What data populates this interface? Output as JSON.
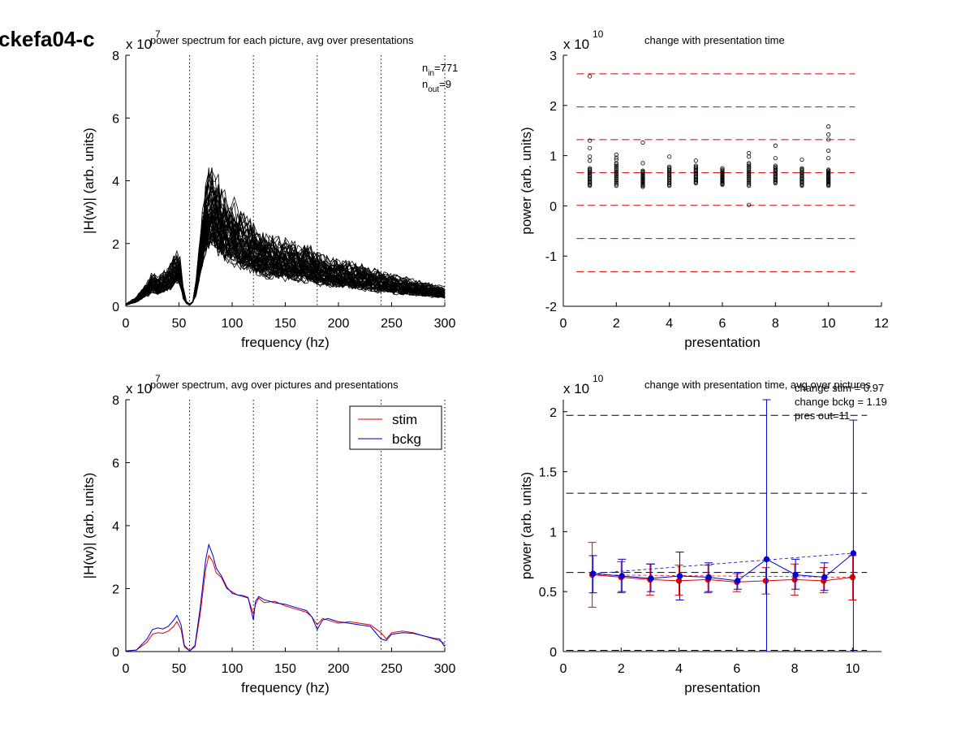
{
  "figure_title": "ckefa04-c",
  "chart_data": [
    {
      "type": "line",
      "title": "power spectrum for each picture, avg over presentations",
      "xlabel": "frequency (hz)",
      "ylabel": "|H(w)| (arb. units)",
      "exponent_label": "x 10",
      "exponent": "7",
      "xlim": [
        0,
        300
      ],
      "ylim": [
        0,
        8
      ],
      "xticks": [
        0,
        50,
        100,
        150,
        200,
        250,
        300
      ],
      "yticks": [
        0,
        2,
        4,
        6,
        8
      ],
      "vlines": [
        60,
        120,
        180,
        240,
        300
      ],
      "annotations": [
        {
          "main": "n",
          "sub": "in",
          "rest": "=771"
        },
        {
          "main": "n",
          "sub": "out",
          "rest": "=9"
        }
      ],
      "n_curves": 60,
      "series": [
        {
          "color": "#000000",
          "x": [
            0,
            10,
            20,
            25,
            30,
            40,
            45,
            50,
            55,
            60,
            65,
            70,
            75,
            80,
            85,
            90,
            100,
            110,
            120,
            130,
            140,
            150,
            160,
            170,
            180,
            190,
            200,
            210,
            220,
            230,
            240,
            250,
            260,
            270,
            280,
            290,
            300
          ],
          "values": [
            0.05,
            0.2,
            0.5,
            0.7,
            0.6,
            0.8,
            1.0,
            1.2,
            0.2,
            0.05,
            0.3,
            1.5,
            2.6,
            3.0,
            2.8,
            2.4,
            2.2,
            1.9,
            1.7,
            1.5,
            1.4,
            1.35,
            1.3,
            1.25,
            1.1,
            1.0,
            0.95,
            0.9,
            0.85,
            0.8,
            0.7,
            0.65,
            0.6,
            0.55,
            0.5,
            0.45,
            0.4
          ]
        }
      ]
    },
    {
      "type": "scatter",
      "title": "change with presentation time",
      "xlabel": "presentation",
      "ylabel": "power (arb. units)",
      "exponent_label": "x 10",
      "exponent": "10",
      "xlim": [
        0,
        12
      ],
      "ylim": [
        -2,
        3
      ],
      "xticks": [
        0,
        2,
        4,
        6,
        8,
        10,
        12
      ],
      "yticks": [
        -2,
        -1,
        0,
        1,
        2,
        3
      ],
      "hlines": [
        2.63,
        1.97,
        1.32,
        0.66,
        0.01,
        -0.65,
        -1.31
      ],
      "clusters": [
        {
          "x": 1,
          "low": 0.4,
          "high": 0.75,
          "outliers": [
            2.58,
            1.3,
            1.15,
            0.98,
            0.9
          ]
        },
        {
          "x": 2,
          "low": 0.4,
          "high": 0.85,
          "outliers": [
            1.02,
            0.96,
            0.92
          ]
        },
        {
          "x": 3,
          "low": 0.38,
          "high": 0.7,
          "outliers": [
            1.26,
            0.85
          ]
        },
        {
          "x": 4,
          "low": 0.4,
          "high": 0.78,
          "outliers": [
            0.98
          ]
        },
        {
          "x": 5,
          "low": 0.45,
          "high": 0.8,
          "outliers": [
            0.9
          ]
        },
        {
          "x": 6,
          "low": 0.42,
          "high": 0.72,
          "outliers": [
            0.75
          ]
        },
        {
          "x": 7,
          "low": 0.4,
          "high": 0.85,
          "outliers": [
            1.05,
            0.98,
            0.02
          ]
        },
        {
          "x": 8,
          "low": 0.45,
          "high": 0.8,
          "outliers": [
            1.2,
            0.95
          ]
        },
        {
          "x": 9,
          "low": 0.4,
          "high": 0.75,
          "outliers": [
            0.92
          ]
        },
        {
          "x": 10,
          "low": 0.4,
          "high": 0.72,
          "outliers": [
            1.58,
            1.42,
            1.32,
            1.1,
            0.95
          ]
        }
      ]
    },
    {
      "type": "line",
      "title": "power spectrum, avg over pictures and presentations",
      "xlabel": "frequency (hz)",
      "ylabel": "|H(w)| (arb. units)",
      "exponent_label": "x 10",
      "exponent": "7",
      "xlim": [
        0,
        300
      ],
      "ylim": [
        0,
        8
      ],
      "xticks": [
        0,
        50,
        100,
        150,
        200,
        250,
        300
      ],
      "yticks": [
        0,
        2,
        4,
        6,
        8
      ],
      "vlines": [
        60,
        120,
        180,
        240,
        300
      ],
      "legend": {
        "position": "top-right"
      },
      "series": [
        {
          "name": "stim",
          "color": "#e00000",
          "x": [
            0,
            10,
            20,
            25,
            30,
            35,
            40,
            45,
            48,
            52,
            55,
            60,
            65,
            70,
            75,
            78,
            82,
            85,
            90,
            95,
            100,
            105,
            110,
            115,
            120,
            122,
            125,
            130,
            140,
            150,
            160,
            170,
            175,
            180,
            185,
            190,
            200,
            210,
            220,
            230,
            240,
            245,
            250,
            260,
            270,
            280,
            290,
            295,
            300
          ],
          "values": [
            0.02,
            0.05,
            0.3,
            0.55,
            0.6,
            0.58,
            0.65,
            0.8,
            0.95,
            0.7,
            0.15,
            0.02,
            0.15,
            1.2,
            2.6,
            3.05,
            2.85,
            2.5,
            2.35,
            2.0,
            1.9,
            1.8,
            1.75,
            1.7,
            1.2,
            1.5,
            1.7,
            1.55,
            1.6,
            1.45,
            1.35,
            1.25,
            1.1,
            0.85,
            1.05,
            1.0,
            0.9,
            0.95,
            0.9,
            0.85,
            0.6,
            0.4,
            0.6,
            0.65,
            0.6,
            0.5,
            0.4,
            0.35,
            0.25
          ]
        },
        {
          "name": "bckg",
          "color": "#0000d0",
          "x": [
            0,
            10,
            20,
            25,
            30,
            35,
            40,
            45,
            48,
            52,
            55,
            60,
            65,
            70,
            75,
            78,
            82,
            85,
            90,
            95,
            100,
            105,
            110,
            115,
            120,
            122,
            125,
            130,
            140,
            150,
            160,
            170,
            175,
            180,
            185,
            190,
            200,
            210,
            220,
            230,
            240,
            245,
            250,
            260,
            270,
            280,
            290,
            295,
            300
          ],
          "values": [
            0.02,
            0.05,
            0.4,
            0.7,
            0.75,
            0.72,
            0.8,
            1.0,
            1.15,
            0.85,
            0.2,
            0.02,
            0.2,
            1.4,
            2.9,
            3.4,
            3.05,
            2.65,
            2.4,
            2.05,
            1.85,
            1.8,
            1.78,
            1.72,
            1.0,
            1.6,
            1.75,
            1.65,
            1.55,
            1.5,
            1.4,
            1.3,
            1.1,
            0.7,
            1.0,
            1.05,
            0.95,
            0.9,
            0.85,
            0.8,
            0.4,
            0.35,
            0.55,
            0.6,
            0.58,
            0.5,
            0.42,
            0.4,
            0.15
          ]
        }
      ]
    },
    {
      "type": "line",
      "title": "change with presentation time, avg over pictures",
      "xlabel": "presentation",
      "ylabel": "power (arb. units)",
      "exponent_label": "x 10",
      "exponent": "10",
      "xlim": [
        0,
        11
      ],
      "ylim": [
        0,
        2.1
      ],
      "xticks": [
        0,
        2,
        4,
        6,
        8,
        10
      ],
      "yticks": [
        0,
        0.5,
        1,
        1.5,
        2
      ],
      "hlines": [
        1.97,
        1.32,
        0.66,
        0.01
      ],
      "annotations": [
        "change stim = 0.97",
        "change bckg = 1.19",
        "pres out=11"
      ],
      "series": [
        {
          "name": "stim",
          "color": "#e00000",
          "x": [
            1,
            2,
            3,
            4,
            5,
            6,
            7,
            8,
            9,
            10
          ],
          "values": [
            0.64,
            0.62,
            0.6,
            0.59,
            0.6,
            0.58,
            0.59,
            0.6,
            0.59,
            0.62
          ],
          "err_low": [
            0.37,
            0.49,
            0.47,
            0.47,
            0.49,
            0.5,
            0.48,
            0.47,
            0.49,
            0.43
          ],
          "err_high": [
            0.91,
            0.75,
            0.73,
            0.72,
            0.72,
            0.65,
            0.7,
            0.73,
            0.7,
            0.8
          ]
        },
        {
          "name": "bckg",
          "color": "#0000d0",
          "x": [
            1,
            2,
            3,
            4,
            5,
            6,
            7,
            8,
            9,
            10
          ],
          "values": [
            0.65,
            0.63,
            0.61,
            0.63,
            0.62,
            0.59,
            0.77,
            0.64,
            0.62,
            0.82
          ],
          "err_low": [
            0.49,
            0.5,
            0.5,
            0.43,
            0.5,
            0.52,
            0.0,
            0.52,
            0.51,
            0.0
          ],
          "err_high": [
            0.8,
            0.77,
            0.73,
            0.83,
            0.74,
            0.66,
            2.1,
            0.77,
            0.74,
            1.93
          ]
        }
      ]
    }
  ]
}
